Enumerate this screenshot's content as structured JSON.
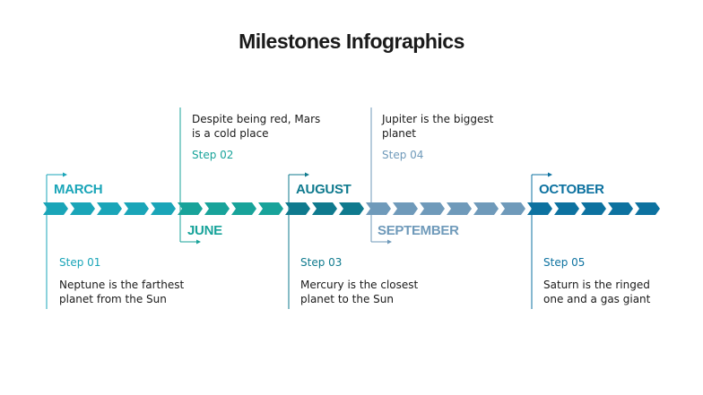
{
  "title": "Milestones Infographics",
  "colors": {
    "march": "#1aa5b8",
    "june": "#18a39a",
    "august": "#0f7a8e",
    "september": "#6f9aba",
    "october": "#0d72a0"
  },
  "milestones": [
    {
      "month": "MARCH",
      "step": "Step 01",
      "text": "Neptune is the farthest planet from the Sun",
      "chevrons": 5
    },
    {
      "month": "JUNE",
      "step": "Step 02",
      "text": "Despite being red, Mars is a cold place",
      "chevrons": 4
    },
    {
      "month": "AUGUST",
      "step": "Step 03",
      "text": "Mercury is the closest planet to the Sun",
      "chevrons": 3
    },
    {
      "month": "SEPTEMBER",
      "step": "Step 04",
      "text": "Jupiter is the biggest planet",
      "chevrons": 6
    },
    {
      "month": "OCTOBER",
      "step": "Step 05",
      "text": "Saturn is the ringed one and a gas giant",
      "chevrons": 5
    }
  ]
}
